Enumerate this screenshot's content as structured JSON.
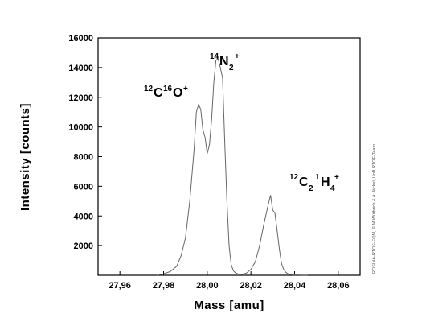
{
  "chart_data": {
    "type": "line",
    "xlabel": "Mass [amu]",
    "ylabel": "Intensity [counts]",
    "xlim": [
      27.95,
      28.07
    ],
    "ylim": [
      0,
      16000
    ],
    "xticks": [
      "27,96",
      "27,98",
      "28,00",
      "28,02",
      "28,04",
      "28,06"
    ],
    "yticks": [
      "2000",
      "4000",
      "6000",
      "8000",
      "10000",
      "12000",
      "14000",
      "16000"
    ],
    "grid": false,
    "series": [
      {
        "x": [
          27.977,
          27.98,
          27.983,
          27.986,
          27.988,
          27.99,
          27.992,
          27.994,
          27.995,
          27.996,
          27.997,
          27.998,
          27.999,
          28.0,
          28.001,
          28.002,
          28.003,
          28.004,
          28.005,
          28.006,
          28.007,
          28.008,
          28.009,
          28.01,
          28.011,
          28.012,
          28.013,
          28.014,
          28.016,
          28.018,
          28.02,
          28.022,
          28.024,
          28.026,
          28.028,
          28.029,
          28.03,
          28.031,
          28.032,
          28.033,
          28.034,
          28.035,
          28.036,
          28.037,
          28.038,
          28.04,
          28.042,
          28.044,
          28.046
        ],
        "y": [
          0,
          100,
          250,
          600,
          1300,
          2500,
          5000,
          8500,
          11000,
          11500,
          11200,
          9800,
          9300,
          8200,
          8800,
          10500,
          13000,
          14500,
          14600,
          14000,
          13300,
          9000,
          5000,
          2000,
          700,
          300,
          150,
          100,
          60,
          150,
          400,
          900,
          2000,
          3500,
          4800,
          5400,
          4400,
          4200,
          3000,
          1800,
          800,
          400,
          200,
          100,
          50,
          20,
          20,
          10,
          10
        ]
      }
    ],
    "annotations": [
      {
        "iso1": "12",
        "el1": "C",
        "iso2": "16",
        "el2": "O",
        "charge": "+"
      },
      {
        "iso1": "14",
        "el1": "N",
        "sub1": "2",
        "charge": "+"
      },
      {
        "iso1": "12",
        "el1": "C",
        "sub1": "2",
        "iso2": "1",
        "el2": "H",
        "sub2": "4",
        "charge": "+"
      }
    ],
    "credit": "ROSINA-RTOF-EQM, © M.Wüthrich & A.Jäckel, UoB RTOF-Team"
  }
}
